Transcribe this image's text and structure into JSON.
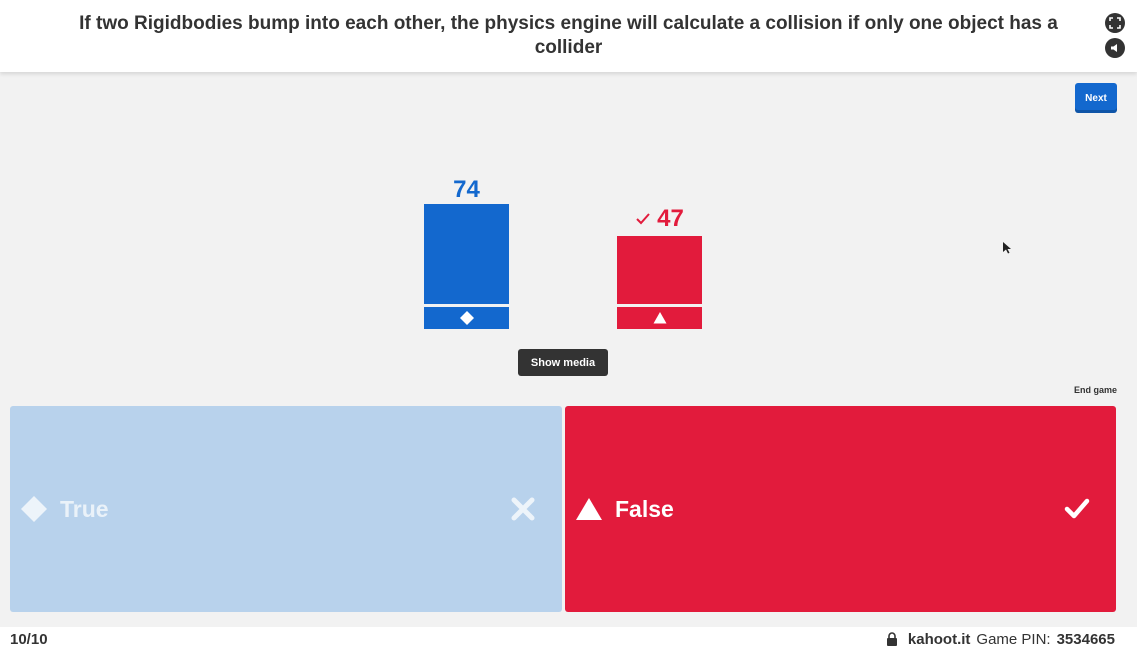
{
  "header": {
    "question": "If two Rigidbodies bump into each other, the physics engine will calculate a collision if only one object has a collider",
    "fullscreen_icon": "fullscreen-icon",
    "sound_icon": "sound-icon"
  },
  "controls": {
    "next_label": "Next",
    "show_media_label": "Show media",
    "end_game_label": "End game"
  },
  "results": [
    {
      "count": "74",
      "color": "#1368ce",
      "shape": "diamond-icon",
      "correct": false
    },
    {
      "count": "47",
      "color": "#e21b3c",
      "shape": "triangle-icon",
      "correct": true
    }
  ],
  "answers": [
    {
      "label": "True",
      "shape": "diamond-icon",
      "mark": "cross-icon",
      "color": "#b8d2ec"
    },
    {
      "label": "False",
      "shape": "triangle-icon",
      "mark": "check-icon",
      "color": "#e21b3c"
    }
  ],
  "footer": {
    "question_counter": "10/10",
    "site": "kahoot.it",
    "pin_label": "Game PIN:",
    "pin_value": "3534665",
    "lock_icon": "lock-icon"
  }
}
